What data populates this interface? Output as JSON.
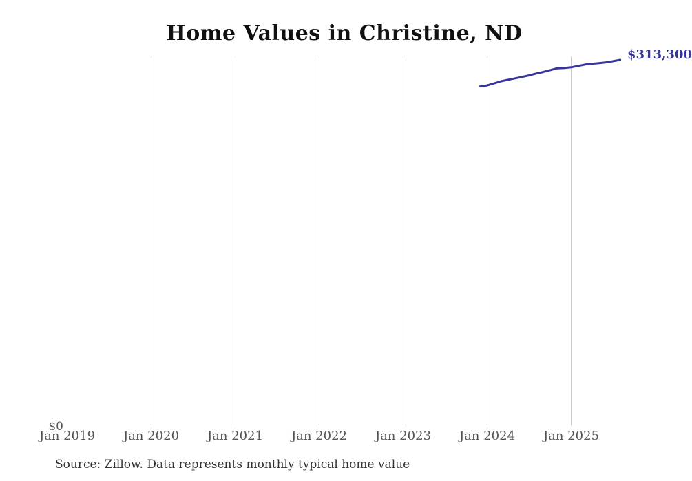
{
  "page": {
    "title": "Home Values in Christine, ND",
    "source_note": "Source: Zillow. Data represents monthly typical home value",
    "end_value_label": "$313,300",
    "y_zero_label": "$0"
  },
  "colors": {
    "line": "#35359b",
    "end_label": "#35359b",
    "gridline": "#cccccc",
    "title_text": "#111111",
    "tick_text": "#555555",
    "source_text": "#333333"
  },
  "chart_data": {
    "type": "line",
    "title": "Home Values in Christine, ND",
    "xlabel": "",
    "ylabel": "",
    "ylim": [
      0,
      316000
    ],
    "grid": "vertical-only",
    "legend": "none",
    "x_ticks": [
      "Jan 2019",
      "Jan 2020",
      "Jan 2021",
      "Jan 2022",
      "Jan 2023",
      "Jan 2024",
      "Jan 2025"
    ],
    "gridline_ticks": [
      "Jan 2020",
      "Jan 2021",
      "Jan 2022",
      "Jan 2023",
      "Jan 2024",
      "Jan 2025"
    ],
    "annotations": {
      "end_label": "$313,300",
      "y_zero_label": "$0"
    },
    "series": [
      {
        "name": "Monthly typical home value",
        "months": [
          "Dec 2023",
          "Jan 2024",
          "Feb 2024",
          "Mar 2024",
          "Apr 2024",
          "May 2024",
          "Jun 2024",
          "Jul 2024",
          "Aug 2024",
          "Sep 2024",
          "Oct 2024",
          "Nov 2024",
          "Dec 2024",
          "Jan 2025",
          "Feb 2025",
          "Mar 2025",
          "Apr 2025",
          "May 2025",
          "Jun 2025",
          "Jul 2025",
          "Aug 2025"
        ],
        "values": [
          290500,
          291400,
          293200,
          295000,
          296300,
          297500,
          298700,
          300000,
          301600,
          302900,
          304500,
          306100,
          306300,
          306900,
          308100,
          309300,
          310000,
          310500,
          311200,
          312200,
          313300
        ]
      }
    ]
  }
}
